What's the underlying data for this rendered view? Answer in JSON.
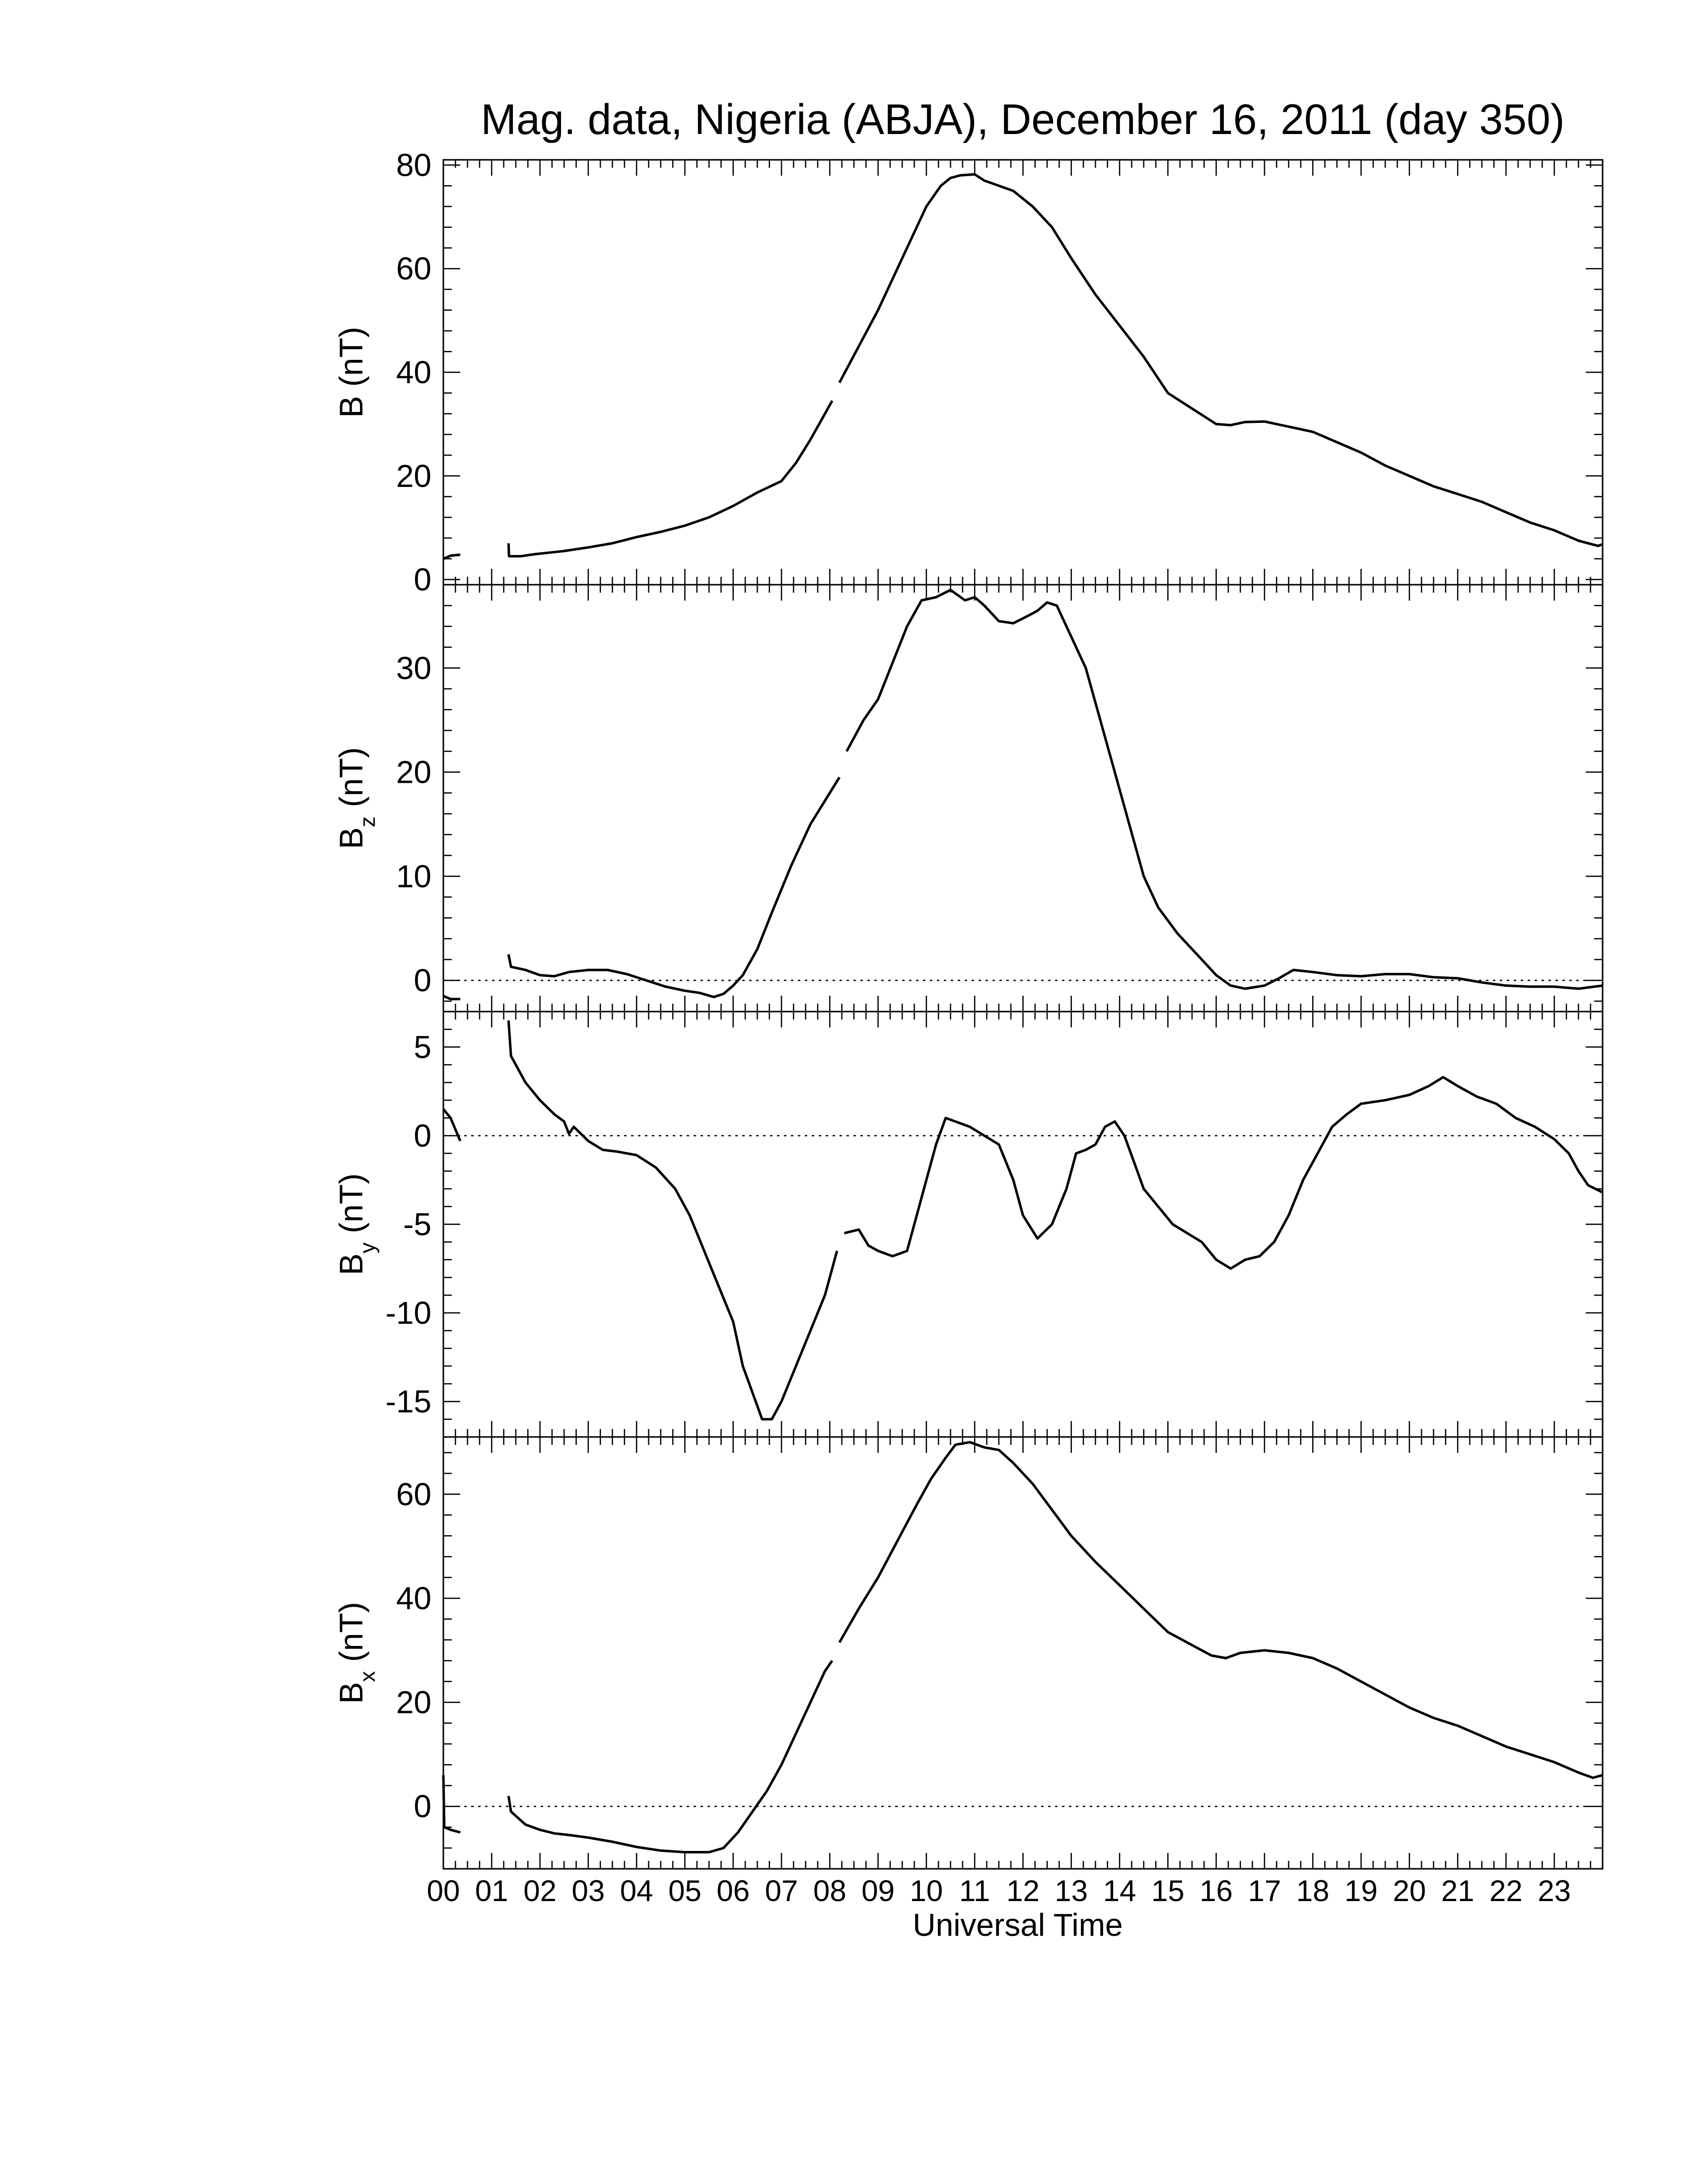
{
  "title": "Mag. data, Nigeria (ABJA), December 16, 2011 (day 350)",
  "xlabel": "Universal Time",
  "x_tick_labels": [
    "00",
    "01",
    "02",
    "03",
    "04",
    "05",
    "06",
    "07",
    "08",
    "09",
    "10",
    "11",
    "12",
    "13",
    "14",
    "15",
    "16",
    "17",
    "18",
    "19",
    "20",
    "21",
    "22",
    "23"
  ],
  "chart_data": [
    {
      "type": "line",
      "ylabel": "B (nT)",
      "ylabel_main": "B",
      "ylabel_sub": "",
      "ylabel_unit": "(nT)",
      "xlim": [
        0,
        24
      ],
      "ylim": [
        -1,
        81
      ],
      "yticks": [
        0,
        20,
        40,
        60,
        80
      ],
      "zero_line": false,
      "segments": [
        [
          [
            0.0,
            4.0
          ],
          [
            0.15,
            4.6
          ],
          [
            0.35,
            4.8
          ]
        ],
        [
          [
            1.35,
            7.0
          ],
          [
            1.36,
            4.5
          ],
          [
            1.6,
            4.5
          ],
          [
            1.9,
            4.9
          ],
          [
            2.2,
            5.2
          ],
          [
            2.5,
            5.5
          ],
          [
            3.0,
            6.2
          ],
          [
            3.5,
            7.0
          ],
          [
            4.0,
            8.2
          ],
          [
            4.5,
            9.2
          ],
          [
            5.0,
            10.4
          ],
          [
            5.5,
            12.0
          ],
          [
            6.0,
            14.2
          ],
          [
            6.5,
            16.8
          ],
          [
            7.0,
            19.0
          ],
          [
            7.3,
            22.5
          ],
          [
            7.6,
            27.0
          ],
          [
            7.9,
            32.0
          ],
          [
            8.05,
            34.5
          ]
        ],
        [
          [
            8.2,
            38.0
          ],
          [
            8.6,
            45.0
          ],
          [
            9.0,
            52.0
          ],
          [
            9.4,
            60.0
          ],
          [
            9.7,
            66.0
          ],
          [
            10.0,
            72.0
          ],
          [
            10.3,
            76.0
          ],
          [
            10.5,
            77.5
          ],
          [
            10.7,
            78.0
          ],
          [
            11.0,
            78.2
          ],
          [
            11.2,
            77.0
          ],
          [
            11.5,
            76.0
          ],
          [
            11.8,
            75.0
          ],
          [
            12.2,
            72.0
          ],
          [
            12.6,
            68.0
          ],
          [
            13.0,
            62.0
          ],
          [
            13.5,
            55.0
          ],
          [
            14.0,
            49.0
          ],
          [
            14.5,
            43.0
          ],
          [
            15.0,
            36.0
          ],
          [
            15.5,
            33.0
          ],
          [
            16.0,
            30.0
          ],
          [
            16.3,
            29.8
          ],
          [
            16.6,
            30.4
          ],
          [
            17.0,
            30.5
          ],
          [
            17.5,
            29.5
          ],
          [
            18.0,
            28.5
          ],
          [
            18.5,
            26.5
          ],
          [
            19.0,
            24.5
          ],
          [
            19.5,
            22.0
          ],
          [
            20.0,
            20.0
          ],
          [
            20.5,
            18.0
          ],
          [
            21.0,
            16.5
          ],
          [
            21.5,
            15.0
          ],
          [
            22.0,
            13.0
          ],
          [
            22.5,
            11.0
          ],
          [
            23.0,
            9.5
          ],
          [
            23.5,
            7.5
          ],
          [
            23.9,
            6.5
          ],
          [
            24.0,
            6.8
          ]
        ]
      ]
    },
    {
      "type": "line",
      "ylabel": "Bz (nT)",
      "ylabel_main": "B",
      "ylabel_sub": "z",
      "ylabel_unit": "(nT)",
      "xlim": [
        0,
        24
      ],
      "ylim": [
        -3,
        38
      ],
      "yticks": [
        0,
        10,
        20,
        30
      ],
      "zero_line": true,
      "segments": [
        [
          [
            0.0,
            -1.5
          ],
          [
            0.15,
            -1.8
          ],
          [
            0.35,
            -1.8
          ]
        ],
        [
          [
            1.35,
            2.5
          ],
          [
            1.4,
            1.3
          ],
          [
            1.7,
            1.0
          ],
          [
            2.0,
            0.5
          ],
          [
            2.3,
            0.4
          ],
          [
            2.6,
            0.8
          ],
          [
            3.0,
            1.0
          ],
          [
            3.4,
            1.0
          ],
          [
            3.8,
            0.6
          ],
          [
            4.2,
            0.0
          ],
          [
            4.6,
            -0.6
          ],
          [
            5.0,
            -1.0
          ],
          [
            5.3,
            -1.2
          ],
          [
            5.6,
            -1.6
          ],
          [
            5.8,
            -1.3
          ],
          [
            6.0,
            -0.5
          ],
          [
            6.2,
            0.5
          ],
          [
            6.5,
            3.0
          ],
          [
            6.8,
            6.5
          ],
          [
            7.2,
            11.0
          ],
          [
            7.6,
            15.0
          ],
          [
            8.0,
            18.0
          ],
          [
            8.2,
            19.5
          ]
        ],
        [
          [
            8.35,
            22.0
          ],
          [
            8.7,
            25.0
          ],
          [
            9.0,
            27.0
          ],
          [
            9.3,
            30.5
          ],
          [
            9.6,
            34.0
          ],
          [
            9.9,
            36.5
          ],
          [
            10.2,
            36.8
          ],
          [
            10.5,
            37.5
          ],
          [
            10.8,
            36.5
          ],
          [
            11.0,
            36.8
          ],
          [
            11.2,
            36.0
          ],
          [
            11.5,
            34.5
          ],
          [
            11.8,
            34.3
          ],
          [
            12.1,
            35.0
          ],
          [
            12.3,
            35.5
          ],
          [
            12.5,
            36.3
          ],
          [
            12.7,
            36.0
          ],
          [
            13.0,
            33.0
          ],
          [
            13.3,
            30.0
          ],
          [
            13.6,
            25.0
          ],
          [
            13.9,
            20.0
          ],
          [
            14.2,
            15.0
          ],
          [
            14.5,
            10.0
          ],
          [
            14.8,
            7.0
          ],
          [
            15.2,
            4.5
          ],
          [
            15.6,
            2.5
          ],
          [
            16.0,
            0.5
          ],
          [
            16.3,
            -0.5
          ],
          [
            16.6,
            -0.8
          ],
          [
            17.0,
            -0.5
          ],
          [
            17.3,
            0.2
          ],
          [
            17.6,
            1.0
          ],
          [
            18.0,
            0.8
          ],
          [
            18.5,
            0.5
          ],
          [
            19.0,
            0.4
          ],
          [
            19.5,
            0.6
          ],
          [
            20.0,
            0.6
          ],
          [
            20.5,
            0.3
          ],
          [
            21.0,
            0.2
          ],
          [
            21.5,
            -0.2
          ],
          [
            22.0,
            -0.5
          ],
          [
            22.5,
            -0.6
          ],
          [
            23.0,
            -0.6
          ],
          [
            23.5,
            -0.8
          ],
          [
            24.0,
            -0.5
          ]
        ]
      ]
    },
    {
      "type": "line",
      "ylabel": "By (nT)",
      "ylabel_main": "B",
      "ylabel_sub": "y",
      "ylabel_unit": "(nT)",
      "xlim": [
        0,
        24
      ],
      "ylim": [
        -17,
        7
      ],
      "yticks": [
        -15,
        -10,
        -5,
        0,
        5
      ],
      "zero_line": true,
      "segments": [
        [
          [
            0.0,
            1.5
          ],
          [
            0.15,
            1.0
          ],
          [
            0.35,
            -0.3
          ]
        ],
        [
          [
            1.35,
            6.5
          ],
          [
            1.4,
            4.5
          ],
          [
            1.7,
            3.0
          ],
          [
            2.0,
            2.0
          ],
          [
            2.3,
            1.2
          ],
          [
            2.5,
            0.8
          ],
          [
            2.6,
            0.1
          ],
          [
            2.7,
            0.5
          ],
          [
            3.0,
            -0.3
          ],
          [
            3.3,
            -0.8
          ],
          [
            3.6,
            -0.9
          ],
          [
            4.0,
            -1.1
          ],
          [
            4.4,
            -1.8
          ],
          [
            4.8,
            -3.0
          ],
          [
            5.1,
            -4.5
          ],
          [
            5.4,
            -6.5
          ],
          [
            5.7,
            -8.5
          ],
          [
            6.0,
            -10.5
          ],
          [
            6.2,
            -13.0
          ],
          [
            6.4,
            -14.5
          ],
          [
            6.6,
            -16.0
          ],
          [
            6.8,
            -16.0
          ],
          [
            7.0,
            -15.0
          ],
          [
            7.3,
            -13.0
          ],
          [
            7.6,
            -11.0
          ],
          [
            7.9,
            -9.0
          ],
          [
            8.05,
            -7.5
          ],
          [
            8.15,
            -6.5
          ]
        ],
        [
          [
            8.3,
            -5.5
          ],
          [
            8.6,
            -5.3
          ],
          [
            8.8,
            -6.2
          ],
          [
            9.0,
            -6.5
          ],
          [
            9.3,
            -6.8
          ],
          [
            9.6,
            -6.5
          ],
          [
            9.8,
            -4.5
          ],
          [
            10.0,
            -2.5
          ],
          [
            10.2,
            -0.5
          ],
          [
            10.4,
            1.0
          ],
          [
            10.6,
            0.8
          ],
          [
            10.9,
            0.5
          ],
          [
            11.2,
            0.0
          ],
          [
            11.5,
            -0.5
          ],
          [
            11.8,
            -2.5
          ],
          [
            12.0,
            -4.5
          ],
          [
            12.3,
            -5.8
          ],
          [
            12.6,
            -5.0
          ],
          [
            12.9,
            -3.0
          ],
          [
            13.1,
            -1.0
          ],
          [
            13.3,
            -0.8
          ],
          [
            13.5,
            -0.5
          ],
          [
            13.7,
            0.5
          ],
          [
            13.9,
            0.8
          ],
          [
            14.1,
            0.0
          ],
          [
            14.3,
            -1.5
          ],
          [
            14.5,
            -3.0
          ],
          [
            14.8,
            -4.0
          ],
          [
            15.1,
            -5.0
          ],
          [
            15.4,
            -5.5
          ],
          [
            15.7,
            -6.0
          ],
          [
            16.0,
            -7.0
          ],
          [
            16.3,
            -7.5
          ],
          [
            16.6,
            -7.0
          ],
          [
            16.9,
            -6.8
          ],
          [
            17.2,
            -6.0
          ],
          [
            17.5,
            -4.5
          ],
          [
            17.8,
            -2.5
          ],
          [
            18.1,
            -1.0
          ],
          [
            18.4,
            0.5
          ],
          [
            18.7,
            1.2
          ],
          [
            19.0,
            1.8
          ],
          [
            19.5,
            2.0
          ],
          [
            20.0,
            2.3
          ],
          [
            20.4,
            2.8
          ],
          [
            20.7,
            3.3
          ],
          [
            21.0,
            2.8
          ],
          [
            21.4,
            2.2
          ],
          [
            21.8,
            1.8
          ],
          [
            22.2,
            1.0
          ],
          [
            22.6,
            0.5
          ],
          [
            23.0,
            -0.2
          ],
          [
            23.3,
            -1.0
          ],
          [
            23.5,
            -2.0
          ],
          [
            23.7,
            -2.8
          ],
          [
            24.0,
            -3.2
          ]
        ]
      ]
    },
    {
      "type": "line",
      "ylabel": "Bx (nT)",
      "ylabel_main": "B",
      "ylabel_sub": "x",
      "ylabel_unit": "(nT)",
      "xlim": [
        0,
        24
      ],
      "ylim": [
        -12,
        71
      ],
      "yticks": [
        0,
        20,
        40,
        60
      ],
      "zero_line": true,
      "segments": [
        [
          [
            0.0,
            6.0
          ],
          [
            0.02,
            -4.0
          ],
          [
            0.15,
            -4.5
          ],
          [
            0.35,
            -5.0
          ]
        ],
        [
          [
            1.35,
            2.0
          ],
          [
            1.4,
            -1.0
          ],
          [
            1.7,
            -3.5
          ],
          [
            2.0,
            -4.5
          ],
          [
            2.3,
            -5.2
          ],
          [
            2.6,
            -5.5
          ],
          [
            3.0,
            -6.0
          ],
          [
            3.5,
            -6.8
          ],
          [
            4.0,
            -7.8
          ],
          [
            4.5,
            -8.5
          ],
          [
            5.0,
            -8.8
          ],
          [
            5.5,
            -8.8
          ],
          [
            5.8,
            -8.0
          ],
          [
            6.1,
            -5.0
          ],
          [
            6.4,
            -1.0
          ],
          [
            6.7,
            3.0
          ],
          [
            7.0,
            8.0
          ],
          [
            7.3,
            14.0
          ],
          [
            7.6,
            20.0
          ],
          [
            7.9,
            26.0
          ],
          [
            8.05,
            28.0
          ]
        ],
        [
          [
            8.2,
            31.5
          ],
          [
            8.6,
            38.0
          ],
          [
            9.0,
            44.0
          ],
          [
            9.4,
            51.0
          ],
          [
            9.8,
            58.0
          ],
          [
            10.1,
            63.0
          ],
          [
            10.4,
            67.0
          ],
          [
            10.6,
            69.5
          ],
          [
            10.9,
            70.0
          ],
          [
            11.2,
            69.0
          ],
          [
            11.5,
            68.5
          ],
          [
            11.8,
            66.0
          ],
          [
            12.2,
            62.0
          ],
          [
            12.6,
            57.0
          ],
          [
            13.0,
            52.0
          ],
          [
            13.5,
            47.0
          ],
          [
            14.0,
            42.5
          ],
          [
            14.5,
            38.0
          ],
          [
            15.0,
            33.5
          ],
          [
            15.5,
            31.0
          ],
          [
            15.9,
            29.0
          ],
          [
            16.2,
            28.5
          ],
          [
            16.5,
            29.5
          ],
          [
            17.0,
            30.0
          ],
          [
            17.5,
            29.5
          ],
          [
            18.0,
            28.5
          ],
          [
            18.5,
            26.5
          ],
          [
            19.0,
            24.0
          ],
          [
            19.5,
            21.5
          ],
          [
            20.0,
            19.0
          ],
          [
            20.5,
            17.0
          ],
          [
            21.0,
            15.5
          ],
          [
            21.5,
            13.5
          ],
          [
            22.0,
            11.5
          ],
          [
            22.5,
            10.0
          ],
          [
            23.0,
            8.5
          ],
          [
            23.5,
            6.5
          ],
          [
            23.8,
            5.5
          ],
          [
            24.0,
            6.0
          ]
        ]
      ]
    }
  ]
}
